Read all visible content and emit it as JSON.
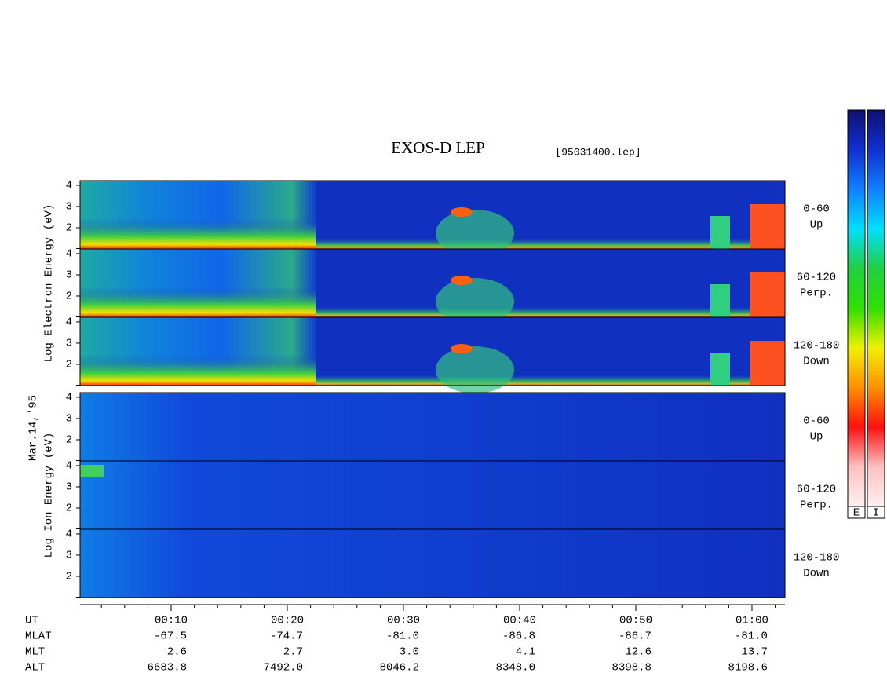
{
  "chart_data": {
    "type": "spectrogram",
    "title": "EXOS-D LEP",
    "subtitle": "[95031400.lep]",
    "date": "Mar.14,'95",
    "groups": [
      {
        "ylabel": "Log  Electron  Energy  (eV)",
        "panels": [
          {
            "label": [
              "0-60",
              "Up"
            ]
          },
          {
            "label": [
              "60-120",
              "Perp."
            ]
          },
          {
            "label": [
              "120-180",
              "Down"
            ]
          }
        ]
      },
      {
        "ylabel": "Log  Ion  Energy  (eV)",
        "panels": [
          {
            "label": [
              "0-60",
              "Up"
            ]
          },
          {
            "label": [
              "60-120",
              "Perp."
            ]
          },
          {
            "label": [
              "120-180",
              "Down"
            ]
          }
        ]
      }
    ],
    "ylim": [
      1,
      4.22
    ],
    "yticks": [
      2,
      3,
      4
    ],
    "xlim": [
      2.16,
      62.84
    ],
    "xticks": [
      {
        "value": 10,
        "label": "00:10"
      },
      {
        "value": 20,
        "label": "00:20"
      },
      {
        "value": 30,
        "label": "00:30"
      },
      {
        "value": 40,
        "label": "00:40"
      },
      {
        "value": 50,
        "label": "00:50"
      },
      {
        "value": 60,
        "label": "01:00"
      }
    ],
    "xminor": [
      4,
      6,
      8,
      12,
      14,
      16,
      18,
      22,
      24,
      26,
      28,
      32,
      34,
      36,
      38,
      42,
      44,
      46,
      48,
      52,
      54,
      56,
      58,
      62
    ],
    "ephemeris": {
      "labels": [
        "UT",
        "MLAT",
        "MLT",
        "ALT"
      ],
      "rows": [
        [
          "-67.5",
          "-74.7",
          "-81.0",
          "-86.8",
          "-86.7",
          "-81.0"
        ],
        [
          "2.6",
          "2.7",
          "3.0",
          "4.1",
          "12.6",
          "13.7"
        ],
        [
          "6683.8",
          "7492.0",
          "8046.2",
          "8348.0",
          "8398.8",
          "8198.6"
        ]
      ]
    },
    "colorbar": {
      "labels": [
        "E",
        "I"
      ],
      "colors": [
        "#101070",
        "#1030d0",
        "#1080ff",
        "#00e0ff",
        "#20d040",
        "#30e000",
        "#f0f000",
        "#ff9000",
        "#ff1010",
        "#ffc0c0",
        "#fff0f0"
      ]
    }
  }
}
